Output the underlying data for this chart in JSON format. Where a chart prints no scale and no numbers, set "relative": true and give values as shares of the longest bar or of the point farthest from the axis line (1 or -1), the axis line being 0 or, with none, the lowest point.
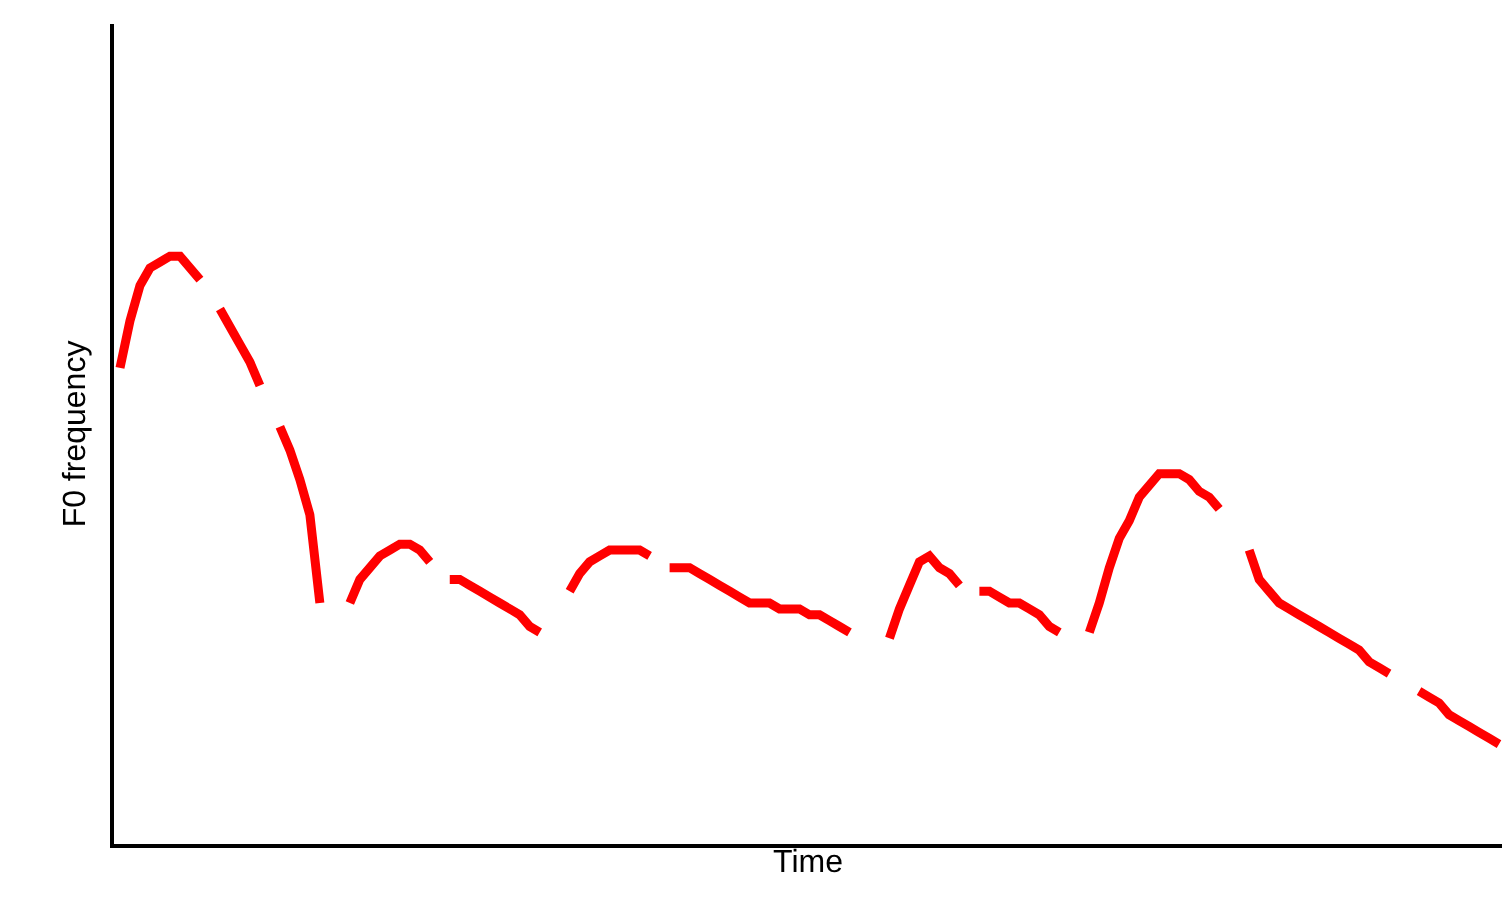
{
  "chart_data": {
    "type": "line",
    "relative": true,
    "xlabel": "Time",
    "ylabel": "F0 frequency",
    "tick_labels": false,
    "categories": [
      null,
      null,
      null,
      null,
      null,
      null,
      null,
      null,
      null,
      null,
      null,
      null,
      null,
      null,
      null,
      null,
      null,
      null,
      null,
      null,
      null,
      null,
      null,
      null,
      null,
      null,
      null,
      null,
      null,
      null,
      null,
      null,
      null,
      null,
      null,
      null,
      null,
      null,
      null,
      null,
      null,
      null,
      null,
      null,
      null,
      null,
      null,
      null,
      null,
      null,
      null,
      null,
      null,
      null,
      null,
      null,
      null,
      null,
      null,
      null,
      null,
      null,
      null,
      null,
      null,
      null,
      null,
      null,
      null,
      null,
      null,
      null,
      null,
      null,
      null,
      null,
      null,
      null,
      null,
      null,
      null,
      null,
      null,
      null,
      null,
      null,
      null,
      null,
      null,
      null,
      null,
      null,
      null,
      null,
      null,
      null,
      null,
      null,
      null,
      null,
      null,
      null,
      null,
      null,
      null,
      null,
      null,
      null,
      null,
      null,
      null,
      null,
      null,
      null,
      null,
      null,
      null,
      null,
      null,
      null,
      null,
      null,
      null,
      null,
      null,
      null,
      null,
      null,
      null,
      null,
      null,
      null,
      null,
      null,
      null,
      null,
      null,
      null,
      null
    ],
    "series": [
      {
        "color": "#ff0000",
        "values": [
          0.81,
          0.89,
          0.95,
          0.98,
          0.99,
          1.0,
          1.0,
          0.98,
          0.96,
          null,
          null,
          null,
          null,
          null,
          null,
          null,
          null,
          null,
          null,
          null,
          null,
          null,
          null,
          null,
          null,
          null,
          null,
          null,
          null,
          null,
          null,
          null,
          null,
          null,
          null,
          null,
          null,
          null,
          null,
          null,
          null,
          null,
          null,
          null,
          null,
          null,
          null,
          null,
          null,
          null,
          null,
          null,
          null,
          null,
          null,
          null,
          null,
          null,
          null,
          null,
          null,
          null,
          null,
          null,
          null,
          null,
          null,
          null,
          null,
          null,
          null,
          null,
          null,
          null,
          null,
          null,
          null,
          null,
          null,
          null,
          null,
          null,
          null,
          null,
          null,
          null,
          null,
          null,
          null,
          null,
          null,
          null,
          null,
          null,
          null,
          null,
          null,
          null,
          null,
          null,
          null,
          null,
          null,
          null,
          null,
          null,
          null,
          null,
          null,
          null,
          null,
          null,
          null,
          null,
          null,
          null,
          null,
          null,
          null,
          null,
          null,
          null,
          null,
          null,
          null,
          null,
          null,
          null,
          null,
          null,
          null,
          null,
          null,
          null,
          null,
          null,
          null,
          null,
          null
        ]
      },
      {
        "color": "#ff0000",
        "values": [
          null,
          null,
          null,
          null,
          null,
          null,
          null,
          null,
          null,
          null,
          0.91,
          0.88,
          0.85,
          0.82,
          0.78,
          null,
          null,
          null,
          null,
          null,
          null,
          null,
          null,
          null,
          null,
          null,
          null,
          null,
          null,
          null,
          null,
          null,
          null,
          null,
          null,
          null,
          null,
          null,
          null,
          null,
          null,
          null,
          null,
          null,
          null,
          null,
          null,
          null,
          null,
          null,
          null,
          null,
          null,
          null,
          null,
          null,
          null,
          null,
          null,
          null,
          null,
          null,
          null,
          null,
          null,
          null,
          null,
          null,
          null,
          null,
          null,
          null,
          null,
          null,
          null,
          null,
          null,
          null,
          null,
          null,
          null,
          null,
          null,
          null,
          null,
          null,
          null,
          null,
          null,
          null,
          null,
          null,
          null,
          null,
          null,
          null,
          null,
          null,
          null,
          null,
          null,
          null,
          null,
          null,
          null,
          null,
          null,
          null,
          null,
          null,
          null,
          null,
          null,
          null,
          null,
          null,
          null,
          null,
          null,
          null,
          null,
          null,
          null,
          null,
          null,
          null,
          null,
          null,
          null,
          null,
          null,
          null,
          null,
          null,
          null,
          null,
          null,
          null,
          null
        ]
      },
      {
        "color": "#ff0000",
        "values": [
          null,
          null,
          null,
          null,
          null,
          null,
          null,
          null,
          null,
          null,
          null,
          null,
          null,
          null,
          null,
          null,
          0.71,
          0.67,
          0.62,
          0.56,
          0.41,
          null,
          null,
          null,
          null,
          null,
          null,
          null,
          null,
          null,
          null,
          null,
          null,
          null,
          null,
          null,
          null,
          null,
          null,
          null,
          null,
          null,
          null,
          null,
          null,
          null,
          null,
          null,
          null,
          null,
          null,
          null,
          null,
          null,
          null,
          null,
          null,
          null,
          null,
          null,
          null,
          null,
          null,
          null,
          null,
          null,
          null,
          null,
          null,
          null,
          null,
          null,
          null,
          null,
          null,
          null,
          null,
          null,
          null,
          null,
          null,
          null,
          null,
          null,
          null,
          null,
          null,
          null,
          null,
          null,
          null,
          null,
          null,
          null,
          null,
          null,
          null,
          null,
          null,
          null,
          null,
          null,
          null,
          null,
          null,
          null,
          null,
          null,
          null,
          null,
          null,
          null,
          null,
          null,
          null,
          null,
          null,
          null,
          null,
          null,
          null,
          null,
          null,
          null,
          null,
          null,
          null,
          null,
          null,
          null,
          null,
          null,
          null,
          null,
          null,
          null,
          null,
          null,
          null
        ]
      },
      {
        "color": "#ff0000",
        "values": [
          null,
          null,
          null,
          null,
          null,
          null,
          null,
          null,
          null,
          null,
          null,
          null,
          null,
          null,
          null,
          null,
          null,
          null,
          null,
          null,
          null,
          null,
          null,
          0.41,
          0.45,
          0.47,
          0.49,
          0.5,
          0.51,
          0.51,
          0.5,
          0.48,
          null,
          null,
          null,
          null,
          null,
          null,
          null,
          null,
          null,
          null,
          null,
          null,
          null,
          null,
          null,
          null,
          null,
          null,
          null,
          null,
          null,
          null,
          null,
          null,
          null,
          null,
          null,
          null,
          null,
          null,
          null,
          null,
          null,
          null,
          null,
          null,
          null,
          null,
          null,
          null,
          null,
          null,
          null,
          null,
          null,
          null,
          null,
          null,
          null,
          null,
          null,
          null,
          null,
          null,
          null,
          null,
          null,
          null,
          null,
          null,
          null,
          null,
          null,
          null,
          null,
          null,
          null,
          null,
          null,
          null,
          null,
          null,
          null,
          null,
          null,
          null,
          null,
          null,
          null,
          null,
          null,
          null,
          null,
          null,
          null,
          null,
          null,
          null,
          null,
          null,
          null,
          null,
          null,
          null,
          null,
          null,
          null,
          null,
          null,
          null,
          null,
          null,
          null,
          null,
          null,
          null,
          null
        ]
      },
      {
        "color": "#ff0000",
        "values": [
          null,
          null,
          null,
          null,
          null,
          null,
          null,
          null,
          null,
          null,
          null,
          null,
          null,
          null,
          null,
          null,
          null,
          null,
          null,
          null,
          null,
          null,
          null,
          null,
          null,
          null,
          null,
          null,
          null,
          null,
          null,
          null,
          null,
          0.45,
          0.45,
          0.44,
          0.43,
          0.42,
          0.41,
          0.4,
          0.39,
          0.37,
          0.36,
          null,
          null,
          null,
          null,
          null,
          null,
          null,
          null,
          null,
          null,
          null,
          null,
          null,
          null,
          null,
          null,
          null,
          null,
          null,
          null,
          null,
          null,
          null,
          null,
          null,
          null,
          null,
          null,
          null,
          null,
          null,
          null,
          null,
          null,
          null,
          null,
          null,
          null,
          null,
          null,
          null,
          null,
          null,
          null,
          null,
          null,
          null,
          null,
          null,
          null,
          null,
          null,
          null,
          null,
          null,
          null,
          null,
          null,
          null,
          null,
          null,
          null,
          null,
          null,
          null,
          null,
          null,
          null,
          null,
          null,
          null,
          null,
          null,
          null,
          null,
          null,
          null,
          null,
          null,
          null,
          null,
          null,
          null,
          null,
          null,
          null,
          null,
          null,
          null,
          null,
          null,
          null,
          null,
          null,
          null,
          null
        ]
      },
      {
        "color": "#ff0000",
        "values": [
          null,
          null,
          null,
          null,
          null,
          null,
          null,
          null,
          null,
          null,
          null,
          null,
          null,
          null,
          null,
          null,
          null,
          null,
          null,
          null,
          null,
          null,
          null,
          null,
          null,
          null,
          null,
          null,
          null,
          null,
          null,
          null,
          null,
          null,
          null,
          null,
          null,
          null,
          null,
          null,
          null,
          null,
          null,
          null,
          null,
          0.43,
          0.46,
          0.48,
          0.49,
          0.5,
          0.5,
          0.5,
          0.5,
          0.49,
          null,
          null,
          null,
          null,
          null,
          null,
          null,
          null,
          null,
          null,
          null,
          null,
          null,
          null,
          null,
          null,
          null,
          null,
          null,
          null,
          null,
          null,
          null,
          null,
          null,
          null,
          null,
          null,
          null,
          null,
          null,
          null,
          null,
          null,
          null,
          null,
          null,
          null,
          null,
          null,
          null,
          null,
          null,
          null,
          null,
          null,
          null,
          null,
          null,
          null,
          null,
          null,
          null,
          null,
          null,
          null,
          null,
          null,
          null,
          null,
          null,
          null,
          null,
          null,
          null,
          null,
          null,
          null,
          null,
          null,
          null,
          null,
          null,
          null,
          null,
          null,
          null,
          null,
          null,
          null,
          null,
          null,
          null,
          null,
          null
        ]
      },
      {
        "color": "#ff0000",
        "values": [
          null,
          null,
          null,
          null,
          null,
          null,
          null,
          null,
          null,
          null,
          null,
          null,
          null,
          null,
          null,
          null,
          null,
          null,
          null,
          null,
          null,
          null,
          null,
          null,
          null,
          null,
          null,
          null,
          null,
          null,
          null,
          null,
          null,
          null,
          null,
          null,
          null,
          null,
          null,
          null,
          null,
          null,
          null,
          null,
          null,
          null,
          null,
          null,
          null,
          null,
          null,
          null,
          null,
          null,
          null,
          0.47,
          0.47,
          0.47,
          0.46,
          0.45,
          0.44,
          0.43,
          0.42,
          0.41,
          0.41,
          0.41,
          0.4,
          0.4,
          0.4,
          0.39,
          0.39,
          0.38,
          0.37,
          0.36,
          null,
          null,
          null,
          null,
          null,
          null,
          null,
          null,
          null,
          null,
          null,
          null,
          null,
          null,
          null,
          null,
          null,
          null,
          null,
          null,
          null,
          null,
          null,
          null,
          null,
          null,
          null,
          null,
          null,
          null,
          null,
          null,
          null,
          null,
          null,
          null,
          null,
          null,
          null,
          null,
          null,
          null,
          null,
          null,
          null,
          null,
          null,
          null,
          null,
          null,
          null,
          null,
          null,
          null,
          null,
          null,
          null,
          null,
          null,
          null,
          null,
          null,
          null,
          null,
          null
        ]
      },
      {
        "color": "#ff0000",
        "values": [
          null,
          null,
          null,
          null,
          null,
          null,
          null,
          null,
          null,
          null,
          null,
          null,
          null,
          null,
          null,
          null,
          null,
          null,
          null,
          null,
          null,
          null,
          null,
          null,
          null,
          null,
          null,
          null,
          null,
          null,
          null,
          null,
          null,
          null,
          null,
          null,
          null,
          null,
          null,
          null,
          null,
          null,
          null,
          null,
          null,
          null,
          null,
          null,
          null,
          null,
          null,
          null,
          null,
          null,
          null,
          null,
          null,
          null,
          null,
          null,
          null,
          null,
          null,
          null,
          null,
          null,
          null,
          null,
          null,
          null,
          null,
          null,
          null,
          null,
          null,
          null,
          null,
          0.35,
          0.4,
          0.44,
          0.48,
          0.49,
          0.47,
          0.46,
          0.44,
          null,
          null,
          null,
          null,
          null,
          null,
          null,
          null,
          null,
          null,
          null,
          null,
          null,
          null,
          null,
          null,
          null,
          null,
          null,
          null,
          null,
          null,
          null,
          null,
          null,
          null,
          null,
          null,
          null,
          null,
          null,
          null,
          null,
          null,
          null,
          null,
          null,
          null,
          null,
          null,
          null,
          null,
          null,
          null,
          null,
          null,
          null,
          null,
          null,
          null,
          null,
          null,
          null,
          null
        ]
      },
      {
        "color": "#ff0000",
        "values": [
          null,
          null,
          null,
          null,
          null,
          null,
          null,
          null,
          null,
          null,
          null,
          null,
          null,
          null,
          null,
          null,
          null,
          null,
          null,
          null,
          null,
          null,
          null,
          null,
          null,
          null,
          null,
          null,
          null,
          null,
          null,
          null,
          null,
          null,
          null,
          null,
          null,
          null,
          null,
          null,
          null,
          null,
          null,
          null,
          null,
          null,
          null,
          null,
          null,
          null,
          null,
          null,
          null,
          null,
          null,
          null,
          null,
          null,
          null,
          null,
          null,
          null,
          null,
          null,
          null,
          null,
          null,
          null,
          null,
          null,
          null,
          null,
          null,
          null,
          null,
          null,
          null,
          null,
          null,
          null,
          null,
          null,
          null,
          null,
          null,
          null,
          0.43,
          0.43,
          0.42,
          0.41,
          0.41,
          0.4,
          0.39,
          0.37,
          0.36,
          null,
          null,
          null,
          null,
          null,
          null,
          null,
          null,
          null,
          null,
          null,
          null,
          null,
          null,
          null,
          null,
          null,
          null,
          null,
          null,
          null,
          null,
          null,
          null,
          null,
          null,
          null,
          null,
          null,
          null,
          null,
          null,
          null,
          null,
          null,
          null,
          null,
          null,
          null,
          null,
          null,
          null,
          null,
          null
        ]
      },
      {
        "color": "#ff0000",
        "values": [
          null,
          null,
          null,
          null,
          null,
          null,
          null,
          null,
          null,
          null,
          null,
          null,
          null,
          null,
          null,
          null,
          null,
          null,
          null,
          null,
          null,
          null,
          null,
          null,
          null,
          null,
          null,
          null,
          null,
          null,
          null,
          null,
          null,
          null,
          null,
          null,
          null,
          null,
          null,
          null,
          null,
          null,
          null,
          null,
          null,
          null,
          null,
          null,
          null,
          null,
          null,
          null,
          null,
          null,
          null,
          null,
          null,
          null,
          null,
          null,
          null,
          null,
          null,
          null,
          null,
          null,
          null,
          null,
          null,
          null,
          null,
          null,
          null,
          null,
          null,
          null,
          null,
          null,
          null,
          null,
          null,
          null,
          null,
          null,
          null,
          null,
          null,
          null,
          null,
          null,
          null,
          null,
          null,
          null,
          null,
          null,
          null,
          0.36,
          0.41,
          0.47,
          0.52,
          0.55,
          0.59,
          0.61,
          0.63,
          0.63,
          0.63,
          0.62,
          0.6,
          0.59,
          0.57,
          null,
          null,
          null,
          null,
          null,
          null,
          null,
          null,
          null,
          null,
          null,
          null,
          null,
          null,
          null,
          null,
          null,
          null,
          null,
          null,
          null,
          null,
          null,
          null,
          null,
          null,
          null,
          null
        ]
      },
      {
        "color": "#ff0000",
        "values": [
          null,
          null,
          null,
          null,
          null,
          null,
          null,
          null,
          null,
          null,
          null,
          null,
          null,
          null,
          null,
          null,
          null,
          null,
          null,
          null,
          null,
          null,
          null,
          null,
          null,
          null,
          null,
          null,
          null,
          null,
          null,
          null,
          null,
          null,
          null,
          null,
          null,
          null,
          null,
          null,
          null,
          null,
          null,
          null,
          null,
          null,
          null,
          null,
          null,
          null,
          null,
          null,
          null,
          null,
          null,
          null,
          null,
          null,
          null,
          null,
          null,
          null,
          null,
          null,
          null,
          null,
          null,
          null,
          null,
          null,
          null,
          null,
          null,
          null,
          null,
          null,
          null,
          null,
          null,
          null,
          null,
          null,
          null,
          null,
          null,
          null,
          null,
          null,
          null,
          null,
          null,
          null,
          null,
          null,
          null,
          null,
          null,
          null,
          null,
          null,
          null,
          null,
          null,
          null,
          null,
          null,
          null,
          null,
          null,
          null,
          null,
          null,
          null,
          0.5,
          0.45,
          0.43,
          0.41,
          0.4,
          0.39,
          0.38,
          0.37,
          0.36,
          0.35,
          0.34,
          0.33,
          0.31,
          0.3,
          0.29,
          null,
          null,
          null,
          null,
          null,
          null,
          null,
          null,
          null,
          null,
          null
        ]
      },
      {
        "color": "#ff0000",
        "values": [
          null,
          null,
          null,
          null,
          null,
          null,
          null,
          null,
          null,
          null,
          null,
          null,
          null,
          null,
          null,
          null,
          null,
          null,
          null,
          null,
          null,
          null,
          null,
          null,
          null,
          null,
          null,
          null,
          null,
          null,
          null,
          null,
          null,
          null,
          null,
          null,
          null,
          null,
          null,
          null,
          null,
          null,
          null,
          null,
          null,
          null,
          null,
          null,
          null,
          null,
          null,
          null,
          null,
          null,
          null,
          null,
          null,
          null,
          null,
          null,
          null,
          null,
          null,
          null,
          null,
          null,
          null,
          null,
          null,
          null,
          null,
          null,
          null,
          null,
          null,
          null,
          null,
          null,
          null,
          null,
          null,
          null,
          null,
          null,
          null,
          null,
          null,
          null,
          null,
          null,
          null,
          null,
          null,
          null,
          null,
          null,
          null,
          null,
          null,
          null,
          null,
          null,
          null,
          null,
          null,
          null,
          null,
          null,
          null,
          null,
          null,
          null,
          null,
          null,
          null,
          null,
          null,
          null,
          null,
          null,
          null,
          null,
          null,
          null,
          null,
          null,
          null,
          null,
          null,
          null,
          0.26,
          0.25,
          0.24,
          0.22,
          0.21,
          0.2,
          0.19,
          0.18,
          0.17
        ]
      }
    ]
  }
}
